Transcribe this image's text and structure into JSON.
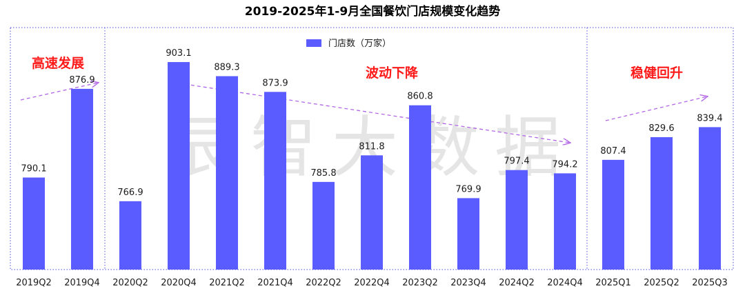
{
  "chart_data": {
    "type": "bar",
    "title": "2019-2025年1-9月全国餐饮门店规模变化趋势",
    "categories": [
      "2019Q2",
      "2019Q4",
      "2020Q2",
      "2020Q4",
      "2021Q2",
      "2021Q4",
      "2022Q2",
      "2022Q4",
      "2023Q2",
      "2023Q4",
      "2024Q2",
      "2024Q4",
      "2025Q1",
      "2025Q2",
      "2025Q3"
    ],
    "series": [
      {
        "name": "门店数（万家）",
        "values": [
          790.1,
          876.9,
          766.9,
          903.1,
          889.3,
          873.9,
          785.8,
          811.8,
          860.8,
          769.9,
          797.4,
          794.2,
          807.4,
          829.6,
          839.4
        ],
        "labels": [
          "790.1",
          "876.9",
          "766.9",
          "903.1",
          "889.3",
          "873.9",
          "785.8",
          "811.8",
          "860.8",
          "769.9",
          "797.4",
          "794.2",
          "807.4",
          "829.6",
          "839.4"
        ]
      }
    ],
    "ylim": [
      700,
      920
    ],
    "grid": false,
    "legend_position": "top-center",
    "phases": [
      {
        "label": "高速发展",
        "from_index": 0,
        "to_index": 1
      },
      {
        "label": "波动下降",
        "from_index": 2,
        "to_index": 11
      },
      {
        "label": "稳健回升",
        "from_index": 12,
        "to_index": 14
      }
    ]
  },
  "watermark": "辰智大数据",
  "colors": {
    "bar": "#5b5cff",
    "phase_text": "#ff1a1a",
    "trend_arrow": "#b266e6",
    "divider": "#4a4ae0"
  }
}
